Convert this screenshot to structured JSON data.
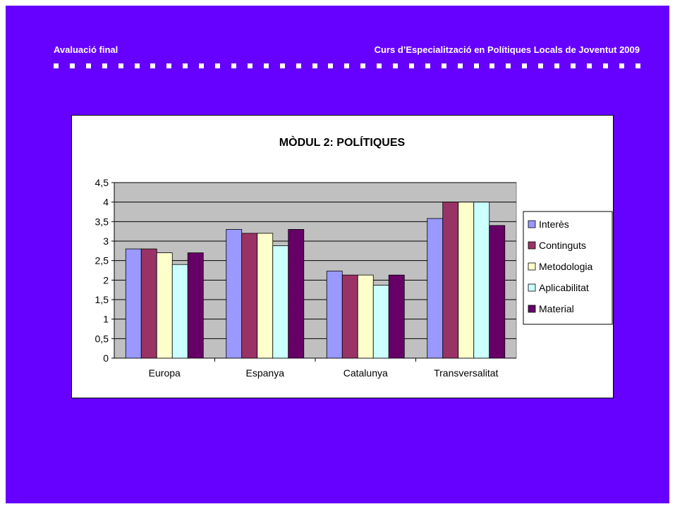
{
  "header": {
    "left_title": "Avaluació final",
    "right_title": "Curs d’Especialització en Polítiques Locals de Joventut 2009"
  },
  "colors": {
    "background": "#6600ff",
    "plot_area": "#c0c0c0",
    "series": [
      "#9999ff",
      "#993366",
      "#ffffcc",
      "#ccffff",
      "#660066"
    ]
  },
  "chart_data": {
    "type": "bar",
    "title": "MÒDUL 2: POLÍTIQUES",
    "categories": [
      "Europa",
      "Espanya",
      "Catalunya",
      "Transversalitat"
    ],
    "series": [
      {
        "name": "Interès",
        "values": [
          2.8,
          3.3,
          2.23,
          3.58
        ]
      },
      {
        "name": "Continguts",
        "values": [
          2.8,
          3.2,
          2.13,
          4.0
        ]
      },
      {
        "name": "Metodologia",
        "values": [
          2.7,
          3.2,
          2.13,
          4.0
        ]
      },
      {
        "name": "Aplicabilitat",
        "values": [
          2.4,
          2.88,
          1.87,
          4.0
        ]
      },
      {
        "name": "Material",
        "values": [
          2.7,
          3.3,
          2.13,
          3.4
        ]
      }
    ],
    "yticks": [
      "0",
      "0,5",
      "1",
      "1,5",
      "2",
      "2,5",
      "3",
      "3,5",
      "4",
      "4,5"
    ],
    "ylim": [
      0,
      4.5
    ],
    "grid": true,
    "legend": "right"
  }
}
